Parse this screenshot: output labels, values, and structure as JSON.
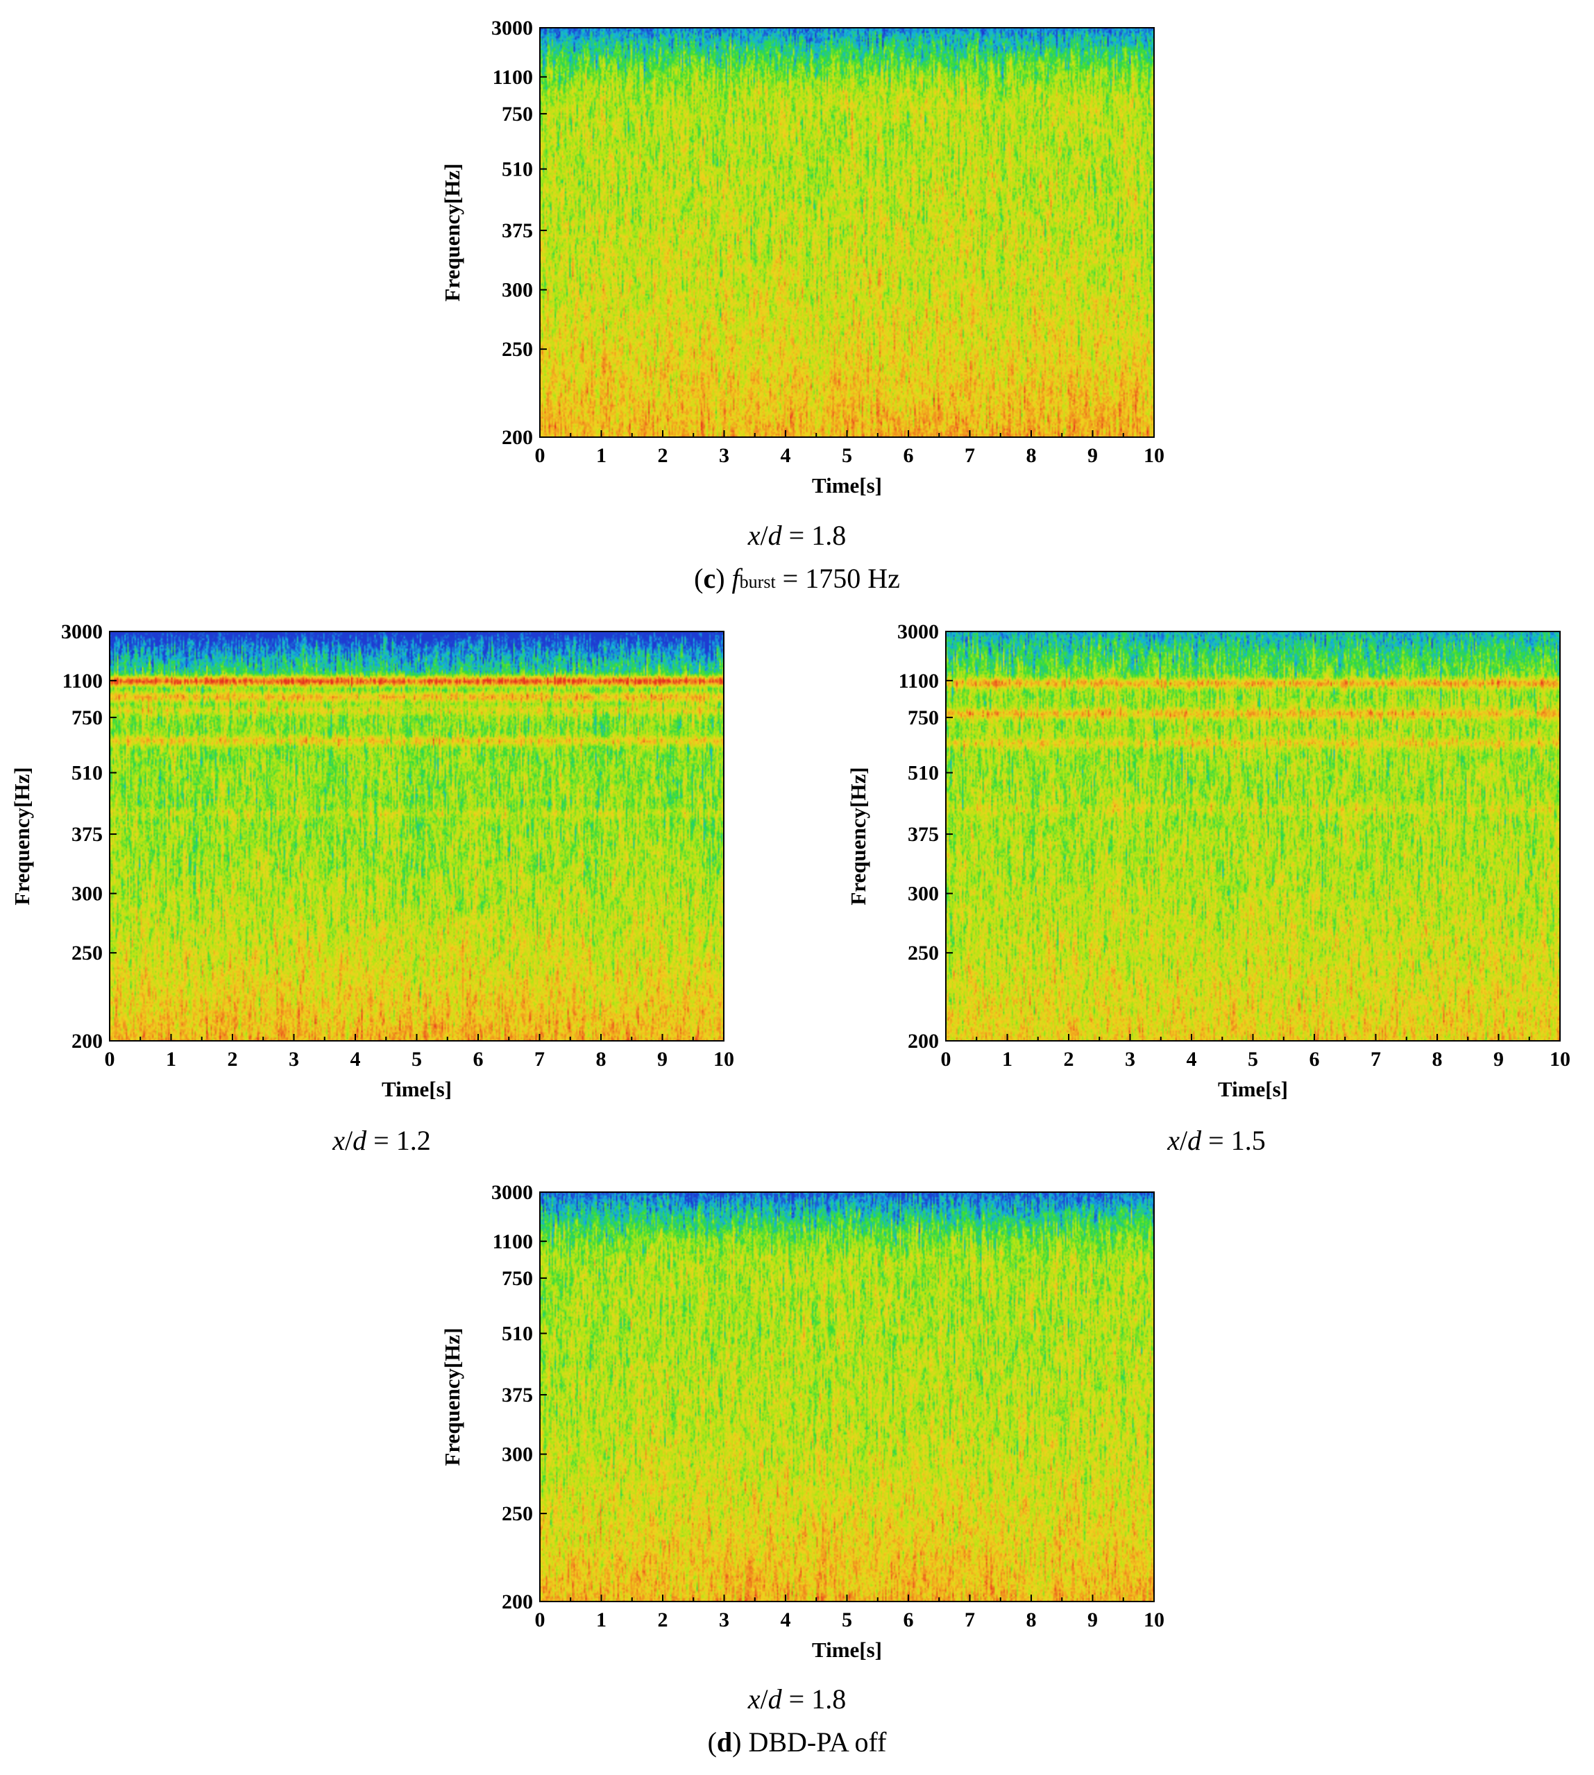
{
  "figure": {
    "subfig_c_label": "c",
    "subfig_c_param_symbol": "f",
    "subfig_c_param_subscript": "burst",
    "subfig_c_param_value": "= 1750 Hz",
    "subfig_d_label": "d",
    "subfig_d_text": "DBD-PA off"
  },
  "chart_data": [
    {
      "id": "c-xd-1.8",
      "type": "heatmap",
      "caption_var": "x/d",
      "caption_value": "= 1.8",
      "xlabel": "Time[s]",
      "ylabel": "Frequency[Hz]",
      "xlim": [
        0,
        10
      ],
      "x_ticks": [
        "0",
        "1",
        "2",
        "3",
        "4",
        "5",
        "6",
        "7",
        "8",
        "9",
        "10"
      ],
      "y_ticks": [
        "200",
        "250",
        "300",
        "375",
        "510",
        "750",
        "1100",
        "3000"
      ],
      "colormap": [
        "#1e3cd2",
        "#14b4dc",
        "#32dc3c",
        "#b4e614",
        "#f0d21e",
        "#f08c1e",
        "#e6321e"
      ],
      "bands": [],
      "base_level": 0.52,
      "low_freq_boost": 0.22,
      "high_freq_drop": 0.42,
      "seed": 11
    },
    {
      "id": "d-xd-1.2",
      "type": "heatmap",
      "caption_var": "x/d",
      "caption_value": "= 1.2",
      "xlabel": "Time[s]",
      "ylabel": "Frequency[Hz]",
      "xlim": [
        0,
        10
      ],
      "x_ticks": [
        "0",
        "1",
        "2",
        "3",
        "4",
        "5",
        "6",
        "7",
        "8",
        "9",
        "10"
      ],
      "y_ticks": [
        "200",
        "250",
        "300",
        "375",
        "510",
        "750",
        "1100",
        "3000"
      ],
      "colormap": [
        "#1e3cd2",
        "#14b4dc",
        "#32dc3c",
        "#b4e614",
        "#f0d21e",
        "#f08c1e",
        "#e6321e"
      ],
      "bands": [
        {
          "freq": 1100,
          "level": 0.93
        },
        {
          "freq": 950,
          "level": 0.72
        },
        {
          "freq": 820,
          "level": 0.6
        },
        {
          "freq": 650,
          "level": 0.66
        },
        {
          "freq": 420,
          "level": 0.55
        }
      ],
      "base_level": 0.44,
      "low_freq_boost": 0.3,
      "high_freq_drop": 0.5,
      "seed": 23
    },
    {
      "id": "d-xd-1.5",
      "type": "heatmap",
      "caption_var": "x/d",
      "caption_value": "= 1.5",
      "xlabel": "Time[s]",
      "ylabel": "Frequency[Hz]",
      "xlim": [
        0,
        10
      ],
      "x_ticks": [
        "0",
        "1",
        "2",
        "3",
        "4",
        "5",
        "6",
        "7",
        "8",
        "9",
        "10"
      ],
      "y_ticks": [
        "200",
        "250",
        "300",
        "375",
        "510",
        "750",
        "1100",
        "3000"
      ],
      "colormap": [
        "#1e3cd2",
        "#14b4dc",
        "#32dc3c",
        "#b4e614",
        "#f0d21e",
        "#f08c1e",
        "#e6321e"
      ],
      "bands": [
        {
          "freq": 1080,
          "level": 0.75
        },
        {
          "freq": 790,
          "level": 0.72
        },
        {
          "freq": 640,
          "level": 0.64
        },
        {
          "freq": 430,
          "level": 0.56
        }
      ],
      "base_level": 0.48,
      "low_freq_boost": 0.18,
      "high_freq_drop": 0.3,
      "seed": 37
    },
    {
      "id": "d-xd-1.8",
      "type": "heatmap",
      "caption_var": "x/d",
      "caption_value": "= 1.8",
      "xlabel": "Time[s]",
      "ylabel": "Frequency[Hz]",
      "xlim": [
        0,
        10
      ],
      "x_ticks": [
        "0",
        "1",
        "2",
        "3",
        "4",
        "5",
        "6",
        "7",
        "8",
        "9",
        "10"
      ],
      "y_ticks": [
        "200",
        "250",
        "300",
        "375",
        "510",
        "750",
        "1100",
        "3000"
      ],
      "colormap": [
        "#1e3cd2",
        "#14b4dc",
        "#32dc3c",
        "#b4e614",
        "#f0d21e",
        "#f08c1e",
        "#e6321e"
      ],
      "bands": [],
      "base_level": 0.5,
      "low_freq_boost": 0.24,
      "high_freq_drop": 0.44,
      "seed": 53
    }
  ]
}
